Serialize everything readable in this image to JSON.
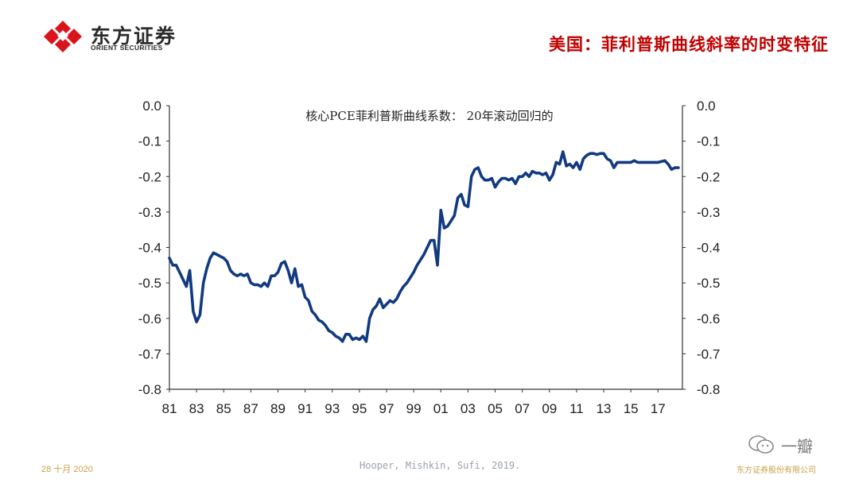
{
  "header": {
    "logo_cn": "东方证券",
    "logo_en": "ORIENT SECURITIES",
    "slide_title": "美国：菲利普斯曲线斜率的时变特征",
    "brand_color": "#c00000"
  },
  "footer": {
    "date": "28 十月 2020",
    "source": "Hooper, Mishkin, Sufi, 2019.",
    "company": "东方证券股份有限公司",
    "watermark": "一瓣"
  },
  "chart_data": {
    "type": "line",
    "title": "核心PCE菲利普斯曲线系数： 20年滚动回归的",
    "xlabel": "",
    "ylabel": "",
    "xlim": [
      1981,
      2018.8
    ],
    "ylim": [
      -0.8,
      0.0
    ],
    "y_ticks": [
      0.0,
      -0.1,
      -0.2,
      -0.3,
      -0.4,
      -0.5,
      -0.6,
      -0.7,
      -0.8
    ],
    "y_tick_labels": [
      "0.0",
      "-0.1",
      "-0.2",
      "-0.3",
      "-0.4",
      "-0.5",
      "-0.6",
      "-0.7",
      "-0.8"
    ],
    "x_ticks": [
      1981,
      1983,
      1985,
      1987,
      1989,
      1991,
      1993,
      1995,
      1997,
      1999,
      2001,
      2003,
      2005,
      2007,
      2009,
      2011,
      2013,
      2015,
      2017
    ],
    "x_tick_labels": [
      "81",
      "83",
      "85",
      "87",
      "89",
      "91",
      "93",
      "95",
      "97",
      "99",
      "01",
      "03",
      "05",
      "07",
      "09",
      "11",
      "13",
      "15",
      "17"
    ],
    "line_color": "#123a80",
    "series": [
      {
        "name": "核心PCE菲利普斯曲线系数",
        "x": [
          1981.0,
          1981.25,
          1981.5,
          1981.75,
          1982.0,
          1982.25,
          1982.5,
          1982.75,
          1983.0,
          1983.25,
          1983.5,
          1983.75,
          1984.0,
          1984.25,
          1984.5,
          1984.75,
          1985.0,
          1985.25,
          1985.5,
          1985.75,
          1986.0,
          1986.25,
          1986.5,
          1986.75,
          1987.0,
          1987.25,
          1987.5,
          1987.75,
          1988.0,
          1988.25,
          1988.5,
          1988.75,
          1989.0,
          1989.25,
          1989.5,
          1989.75,
          1990.0,
          1990.25,
          1990.5,
          1990.75,
          1991.0,
          1991.25,
          1991.5,
          1991.75,
          1992.0,
          1992.25,
          1992.5,
          1992.75,
          1993.0,
          1993.25,
          1993.5,
          1993.75,
          1994.0,
          1994.25,
          1994.5,
          1994.75,
          1995.0,
          1995.25,
          1995.5,
          1995.75,
          1996.0,
          1996.25,
          1996.5,
          1996.75,
          1997.0,
          1997.25,
          1997.5,
          1997.75,
          1998.0,
          1998.25,
          1998.5,
          1998.75,
          1999.0,
          1999.25,
          1999.5,
          1999.75,
          2000.0,
          2000.25,
          2000.5,
          2000.75,
          2001.0,
          2001.25,
          2001.5,
          2001.75,
          2002.0,
          2002.25,
          2002.5,
          2002.75,
          2003.0,
          2003.25,
          2003.5,
          2003.75,
          2004.0,
          2004.25,
          2004.5,
          2004.75,
          2005.0,
          2005.25,
          2005.5,
          2005.75,
          2006.0,
          2006.25,
          2006.5,
          2006.75,
          2007.0,
          2007.25,
          2007.5,
          2007.75,
          2008.0,
          2008.25,
          2008.5,
          2008.75,
          2009.0,
          2009.25,
          2009.5,
          2009.75,
          2010.0,
          2010.25,
          2010.5,
          2010.75,
          2011.0,
          2011.25,
          2011.5,
          2011.75,
          2012.0,
          2012.25,
          2012.5,
          2012.75,
          2013.0,
          2013.25,
          2013.5,
          2013.75,
          2014.0,
          2014.5,
          2015.0,
          2015.25,
          2015.5,
          2016.0,
          2016.5,
          2017.0,
          2017.5,
          2017.75,
          2018.0,
          2018.25,
          2018.5
        ],
        "values": [
          -0.43,
          -0.45,
          -0.45,
          -0.47,
          -0.49,
          -0.51,
          -0.465,
          -0.58,
          -0.61,
          -0.59,
          -0.5,
          -0.46,
          -0.43,
          -0.415,
          -0.42,
          -0.425,
          -0.43,
          -0.44,
          -0.465,
          -0.475,
          -0.48,
          -0.475,
          -0.48,
          -0.475,
          -0.5,
          -0.505,
          -0.505,
          -0.51,
          -0.5,
          -0.51,
          -0.48,
          -0.48,
          -0.47,
          -0.445,
          -0.44,
          -0.465,
          -0.5,
          -0.46,
          -0.51,
          -0.505,
          -0.54,
          -0.55,
          -0.58,
          -0.59,
          -0.605,
          -0.61,
          -0.62,
          -0.635,
          -0.64,
          -0.65,
          -0.655,
          -0.665,
          -0.645,
          -0.645,
          -0.66,
          -0.655,
          -0.66,
          -0.65,
          -0.665,
          -0.6,
          -0.575,
          -0.565,
          -0.545,
          -0.57,
          -0.56,
          -0.55,
          -0.555,
          -0.545,
          -0.525,
          -0.51,
          -0.5,
          -0.485,
          -0.47,
          -0.45,
          -0.435,
          -0.42,
          -0.4,
          -0.38,
          -0.38,
          -0.45,
          -0.295,
          -0.345,
          -0.34,
          -0.325,
          -0.31,
          -0.26,
          -0.25,
          -0.28,
          -0.285,
          -0.2,
          -0.18,
          -0.175,
          -0.2,
          -0.21,
          -0.21,
          -0.205,
          -0.23,
          -0.215,
          -0.205,
          -0.205,
          -0.21,
          -0.205,
          -0.22,
          -0.2,
          -0.2,
          -0.19,
          -0.2,
          -0.185,
          -0.19,
          -0.19,
          -0.195,
          -0.19,
          -0.21,
          -0.195,
          -0.16,
          -0.165,
          -0.13,
          -0.17,
          -0.165,
          -0.175,
          -0.16,
          -0.18,
          -0.15,
          -0.14,
          -0.135,
          -0.135,
          -0.138,
          -0.135,
          -0.135,
          -0.15,
          -0.155,
          -0.175,
          -0.16,
          -0.16,
          -0.16,
          -0.155,
          -0.16,
          -0.16,
          -0.16,
          -0.16,
          -0.155,
          -0.165,
          -0.18,
          -0.175,
          -0.175
        ]
      }
    ]
  }
}
